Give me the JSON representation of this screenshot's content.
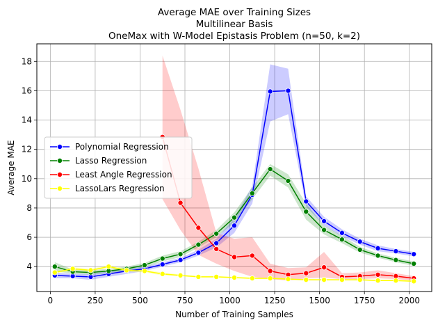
{
  "chart_data": {
    "type": "line",
    "title_lines": [
      "Average MAE over Training Sizes",
      "Multilinear Basis",
      "OneMax with W-Model Epistasis Problem (n=50, k=2)"
    ],
    "xlabel": "Number of Training Samples",
    "ylabel": "Average MAE",
    "xlim": [
      -75,
      2125
    ],
    "ylim": [
      2.3,
      19.2
    ],
    "xticks": [
      0,
      250,
      500,
      750,
      1000,
      1250,
      1500,
      1750,
      2000
    ],
    "yticks": [
      4,
      6,
      8,
      10,
      12,
      14,
      16,
      18
    ],
    "grid": true,
    "legend_position": "center-left",
    "series": [
      {
        "name": "Polynomial Regression",
        "color": "#0000ff",
        "x": [
          25,
          125,
          225,
          325,
          425,
          525,
          625,
          725,
          825,
          925,
          1025,
          1125,
          1225,
          1325,
          1425,
          1525,
          1625,
          1725,
          1825,
          1925,
          2025
        ],
        "y": [
          3.4,
          3.35,
          3.3,
          3.5,
          3.7,
          3.85,
          4.15,
          4.45,
          4.95,
          5.6,
          6.8,
          8.9,
          15.95,
          16.0,
          8.45,
          7.1,
          6.3,
          5.7,
          5.25,
          5.05,
          4.85
        ],
        "lower": [
          3.2,
          3.2,
          3.1,
          3.3,
          3.5,
          3.7,
          4.0,
          4.3,
          4.75,
          5.3,
          6.3,
          8.3,
          13.9,
          14.4,
          8.1,
          6.8,
          6.05,
          5.5,
          5.05,
          4.9,
          4.7
        ],
        "upper": [
          3.6,
          3.5,
          3.5,
          3.7,
          3.9,
          4.0,
          4.3,
          4.6,
          5.15,
          5.9,
          7.3,
          9.5,
          17.8,
          17.5,
          8.8,
          7.4,
          6.55,
          5.9,
          5.45,
          5.2,
          5.0
        ]
      },
      {
        "name": "Lasso Regression",
        "color": "#008000",
        "x": [
          25,
          125,
          225,
          325,
          425,
          525,
          625,
          725,
          825,
          925,
          1025,
          1125,
          1225,
          1325,
          1425,
          1525,
          1625,
          1725,
          1825,
          1925,
          2025
        ],
        "y": [
          4.0,
          3.65,
          3.6,
          3.7,
          3.85,
          4.1,
          4.55,
          4.85,
          5.5,
          6.25,
          7.35,
          9.0,
          10.65,
          9.85,
          7.75,
          6.5,
          5.85,
          5.15,
          4.75,
          4.45,
          4.2
        ],
        "lower": [
          3.7,
          3.5,
          3.45,
          3.55,
          3.7,
          3.95,
          4.35,
          4.65,
          5.3,
          6.0,
          7.0,
          8.6,
          10.2,
          9.4,
          7.2,
          6.2,
          5.6,
          4.95,
          4.6,
          4.3,
          4.05
        ],
        "upper": [
          4.3,
          3.8,
          3.75,
          3.85,
          4.0,
          4.25,
          4.75,
          5.05,
          5.7,
          6.5,
          7.7,
          9.4,
          11.0,
          10.3,
          8.3,
          6.8,
          6.1,
          5.35,
          4.9,
          4.6,
          4.35
        ]
      },
      {
        "name": "Least Angle Regression",
        "color": "#ff0000",
        "x": [
          625,
          725,
          825,
          925,
          1025,
          1125,
          1225,
          1325,
          1425,
          1525,
          1625,
          1725,
          1825,
          1925,
          2025
        ],
        "y": [
          12.85,
          8.35,
          6.65,
          5.2,
          4.65,
          4.75,
          3.7,
          3.45,
          3.55,
          3.95,
          3.3,
          3.35,
          3.45,
          3.35,
          3.2
        ],
        "lower": [
          8.6,
          6.5,
          4.8,
          4.2,
          3.7,
          3.3,
          3.15,
          3.05,
          3.2,
          3.25,
          3.15,
          3.15,
          3.2,
          3.15,
          3.05
        ],
        "upper": [
          18.4,
          14.7,
          10.7,
          6.3,
          5.9,
          6.0,
          4.2,
          3.9,
          3.95,
          5.0,
          3.55,
          3.6,
          3.75,
          3.55,
          3.35
        ]
      },
      {
        "name": "LassoLars Regression",
        "color": "#ffff00",
        "x": [
          25,
          125,
          225,
          325,
          425,
          525,
          625,
          725,
          825,
          925,
          1025,
          1125,
          1225,
          1325,
          1425,
          1525,
          1625,
          1725,
          1825,
          1925,
          2025
        ],
        "y": [
          3.6,
          3.85,
          3.75,
          4.0,
          3.75,
          3.7,
          3.5,
          3.4,
          3.3,
          3.3,
          3.25,
          3.2,
          3.2,
          3.15,
          3.1,
          3.1,
          3.1,
          3.1,
          3.05,
          3.05,
          3.0
        ],
        "lower": [
          3.5,
          3.75,
          3.65,
          3.9,
          3.65,
          3.6,
          3.4,
          3.33,
          3.25,
          3.25,
          3.2,
          3.15,
          3.15,
          3.1,
          3.05,
          3.05,
          3.05,
          3.05,
          3.0,
          3.0,
          2.95
        ],
        "upper": [
          3.7,
          3.95,
          3.85,
          4.1,
          3.85,
          3.8,
          3.6,
          3.47,
          3.35,
          3.35,
          3.3,
          3.25,
          3.25,
          3.2,
          3.15,
          3.15,
          3.15,
          3.15,
          3.1,
          3.1,
          3.05
        ]
      }
    ]
  }
}
